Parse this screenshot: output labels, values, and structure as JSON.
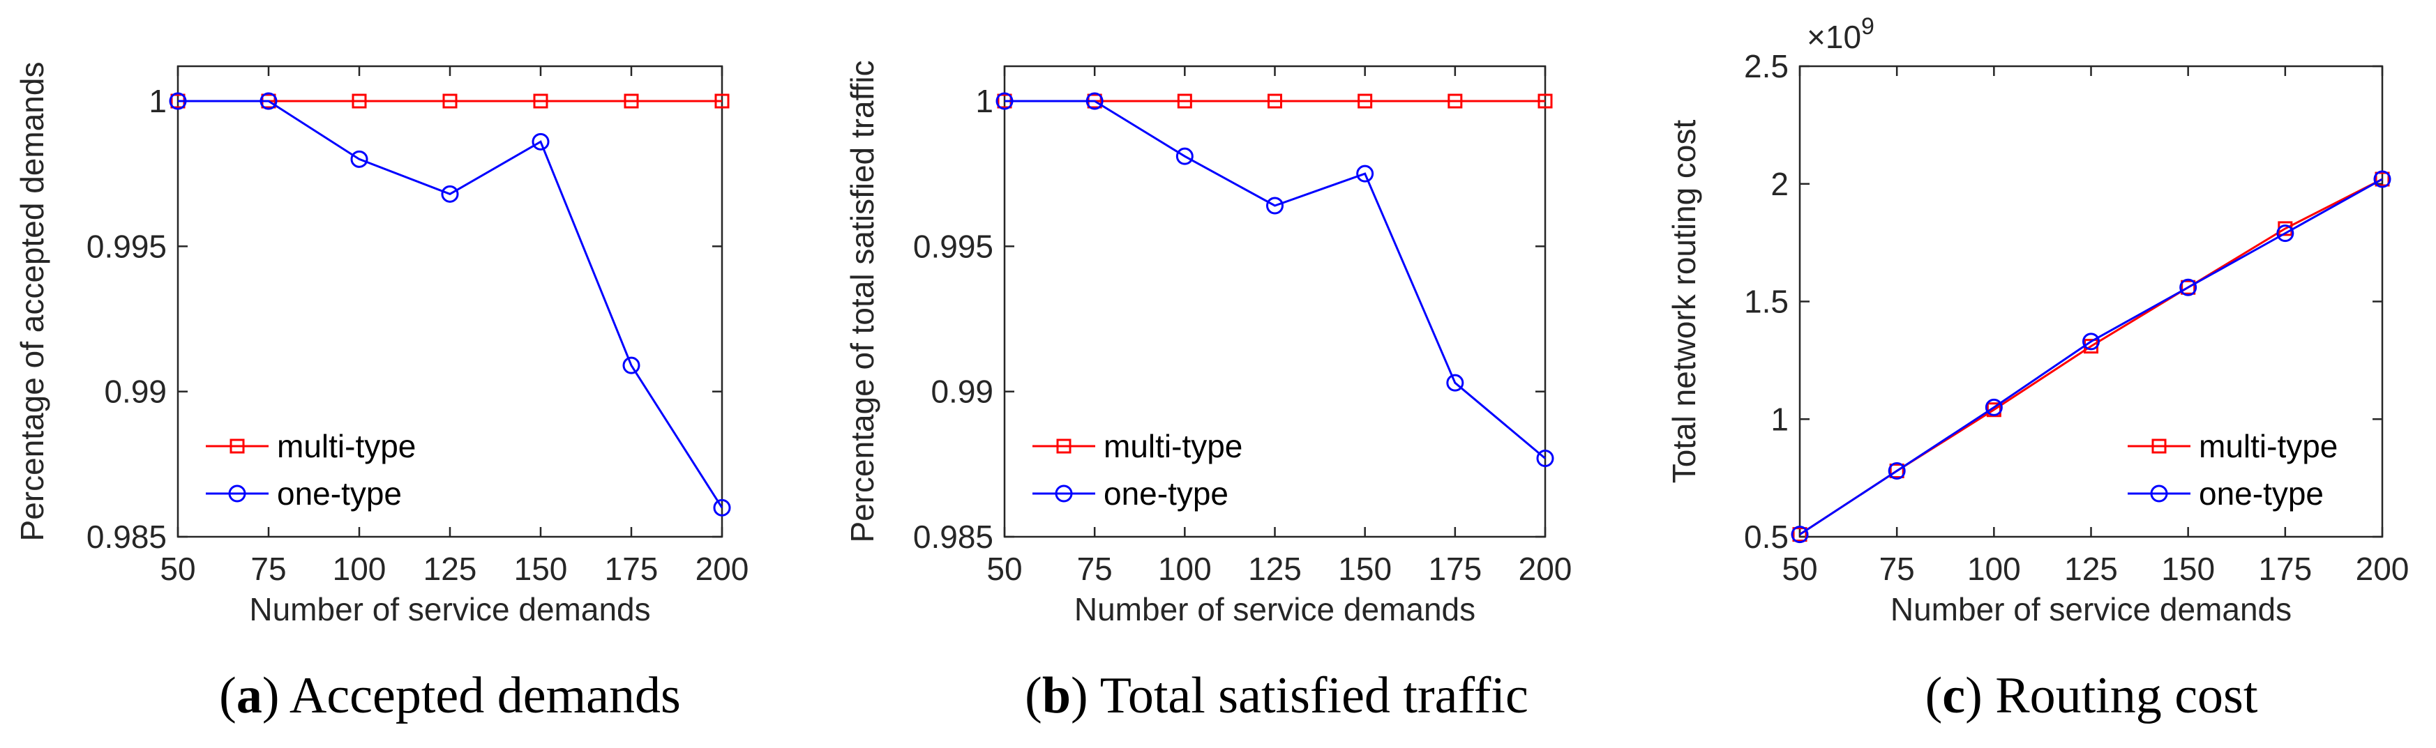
{
  "colors": {
    "multi": "#ff0000",
    "one": "#0000ff",
    "axis": "#262626"
  },
  "chart_data": [
    {
      "type": "line",
      "panel_letter": "a",
      "caption_text": " Accepted demands",
      "xlabel": "Number of service demands",
      "ylabel": "Percentage of accepted demands",
      "x": [
        50,
        75,
        100,
        125,
        150,
        175,
        200
      ],
      "xticks": [
        "50",
        "75",
        "100",
        "125",
        "150",
        "175",
        "200"
      ],
      "xlim": [
        50,
        200
      ],
      "ylim": [
        0.985,
        1.0012
      ],
      "yticks": [
        0.985,
        0.99,
        0.995,
        1
      ],
      "ytick_labels": [
        "0.985",
        "0.99",
        "0.995",
        "1"
      ],
      "exponent_label": "",
      "legend_position": "lower-left",
      "series": [
        {
          "name": "multi-type",
          "marker": "square",
          "color": "#ff0000",
          "values": [
            1,
            1,
            1,
            1,
            1,
            1,
            1
          ]
        },
        {
          "name": "one-type",
          "marker": "circle",
          "color": "#0000ff",
          "values": [
            1,
            1,
            0.998,
            0.9968,
            0.9986,
            0.9909,
            0.986
          ]
        }
      ]
    },
    {
      "type": "line",
      "panel_letter": "b",
      "caption_text": " Total satisfied traffic",
      "xlabel": "Number of service demands",
      "ylabel": "Percentage of total satisfied traffic",
      "x": [
        50,
        75,
        100,
        125,
        150,
        175,
        200
      ],
      "xticks": [
        "50",
        "75",
        "100",
        "125",
        "150",
        "175",
        "200"
      ],
      "xlim": [
        50,
        200
      ],
      "ylim": [
        0.985,
        1.0012
      ],
      "yticks": [
        0.985,
        0.99,
        0.995,
        1
      ],
      "ytick_labels": [
        "0.985",
        "0.99",
        "0.995",
        "1"
      ],
      "exponent_label": "",
      "legend_position": "lower-left",
      "series": [
        {
          "name": "multi-type",
          "marker": "square",
          "color": "#ff0000",
          "values": [
            1,
            1,
            1,
            1,
            1,
            1,
            1
          ]
        },
        {
          "name": "one-type",
          "marker": "circle",
          "color": "#0000ff",
          "values": [
            1,
            1,
            0.9981,
            0.9964,
            0.9975,
            0.9903,
            0.9877
          ]
        }
      ]
    },
    {
      "type": "line",
      "panel_letter": "c",
      "caption_text": " Routing cost",
      "xlabel": "Number of service demands",
      "ylabel": "Total network routing cost",
      "x": [
        50,
        75,
        100,
        125,
        150,
        175,
        200
      ],
      "xticks": [
        "50",
        "75",
        "100",
        "125",
        "150",
        "175",
        "200"
      ],
      "xlim": [
        50,
        200
      ],
      "ylim": [
        0.5,
        2.5
      ],
      "yticks": [
        0.5,
        1,
        1.5,
        2,
        2.5
      ],
      "ytick_labels": [
        "0.5",
        "1",
        "1.5",
        "2",
        "2.5"
      ],
      "exponent_label": "×10",
      "exponent_power": "9",
      "legend_position": "lower-right",
      "series": [
        {
          "name": "multi-type",
          "marker": "square",
          "color": "#ff0000",
          "values": [
            0.51,
            0.78,
            1.04,
            1.31,
            1.56,
            1.81,
            2.02
          ]
        },
        {
          "name": "one-type",
          "marker": "circle",
          "color": "#0000ff",
          "values": [
            0.51,
            0.78,
            1.05,
            1.33,
            1.56,
            1.79,
            2.02
          ]
        }
      ]
    }
  ]
}
